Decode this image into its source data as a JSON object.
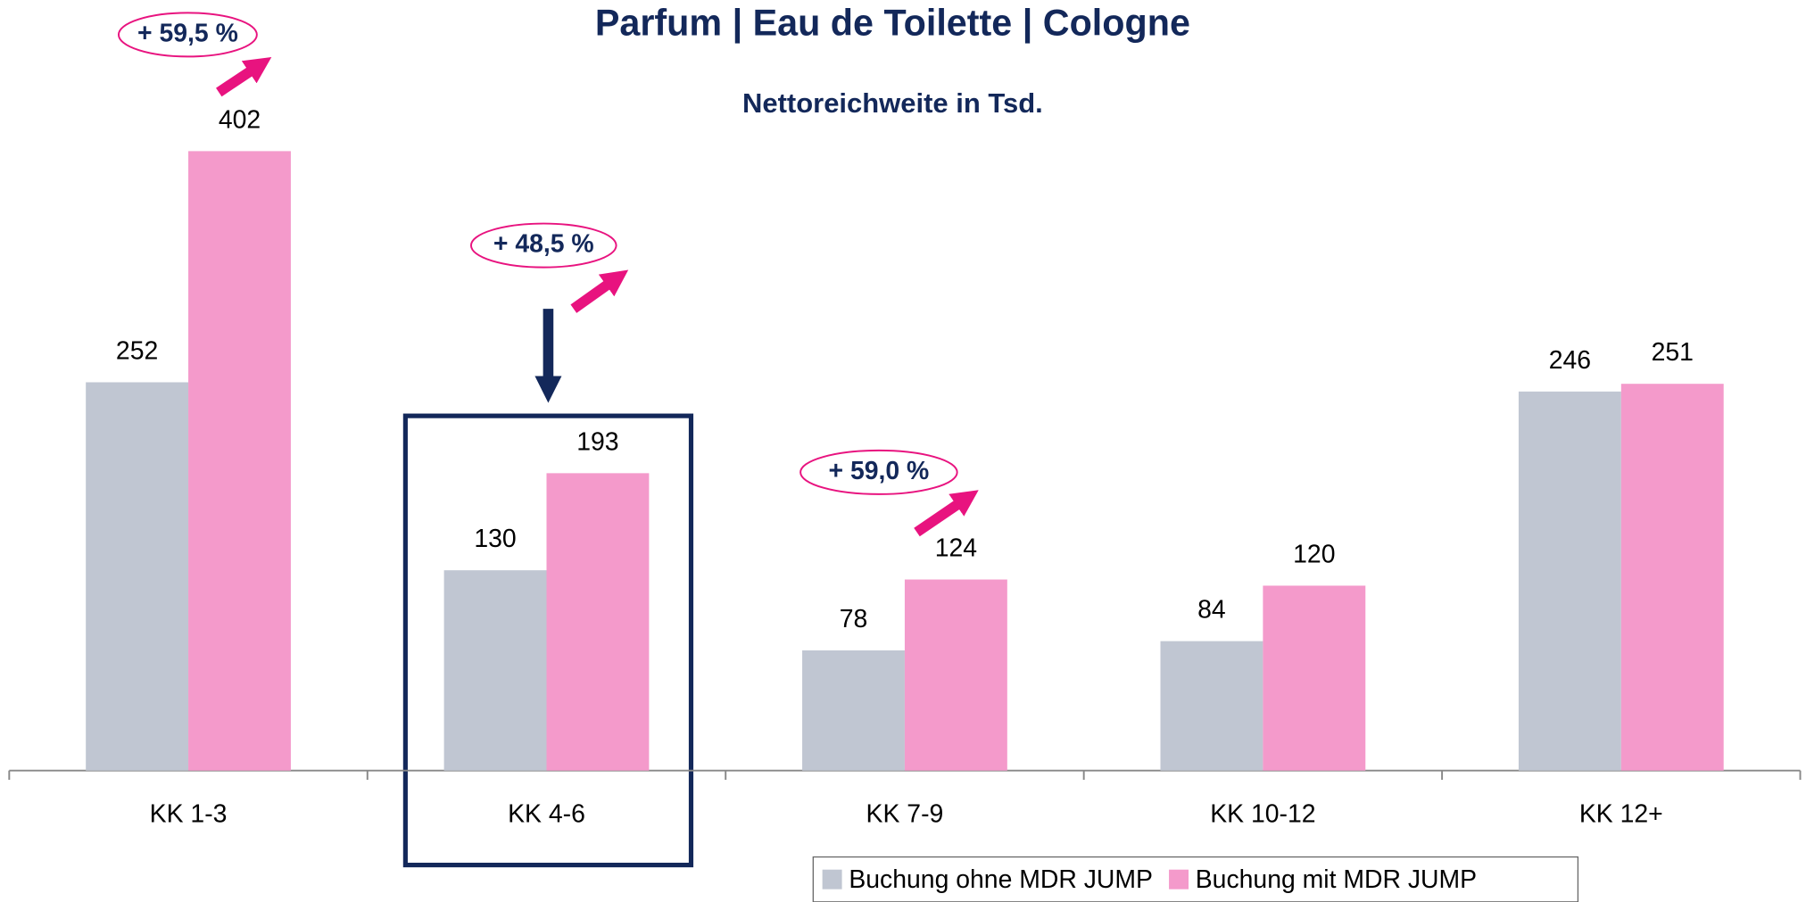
{
  "chart_data": {
    "type": "bar",
    "title": "Parfum | Eau de Toilette | Cologne",
    "subtitle": "Nettoreichweite in Tsd.",
    "categories": [
      "KK 1-3",
      "KK 4-6",
      "KK 7-9",
      "KK 10-12",
      "KK 12+"
    ],
    "series": [
      {
        "name": "Buchung ohne MDR JUMP",
        "color": "#c0c6d2",
        "values": [
          252,
          130,
          78,
          84,
          246
        ]
      },
      {
        "name": "Buchung mit MDR JUMP",
        "color": "#f49acb",
        "values": [
          402,
          193,
          124,
          120,
          251
        ]
      }
    ],
    "ylim": [
      0,
      500
    ],
    "legend": "bottom-right",
    "annotations": [
      "+ 59,5 %",
      "+ 48,5 %",
      "+ 59,0 %"
    ]
  }
}
